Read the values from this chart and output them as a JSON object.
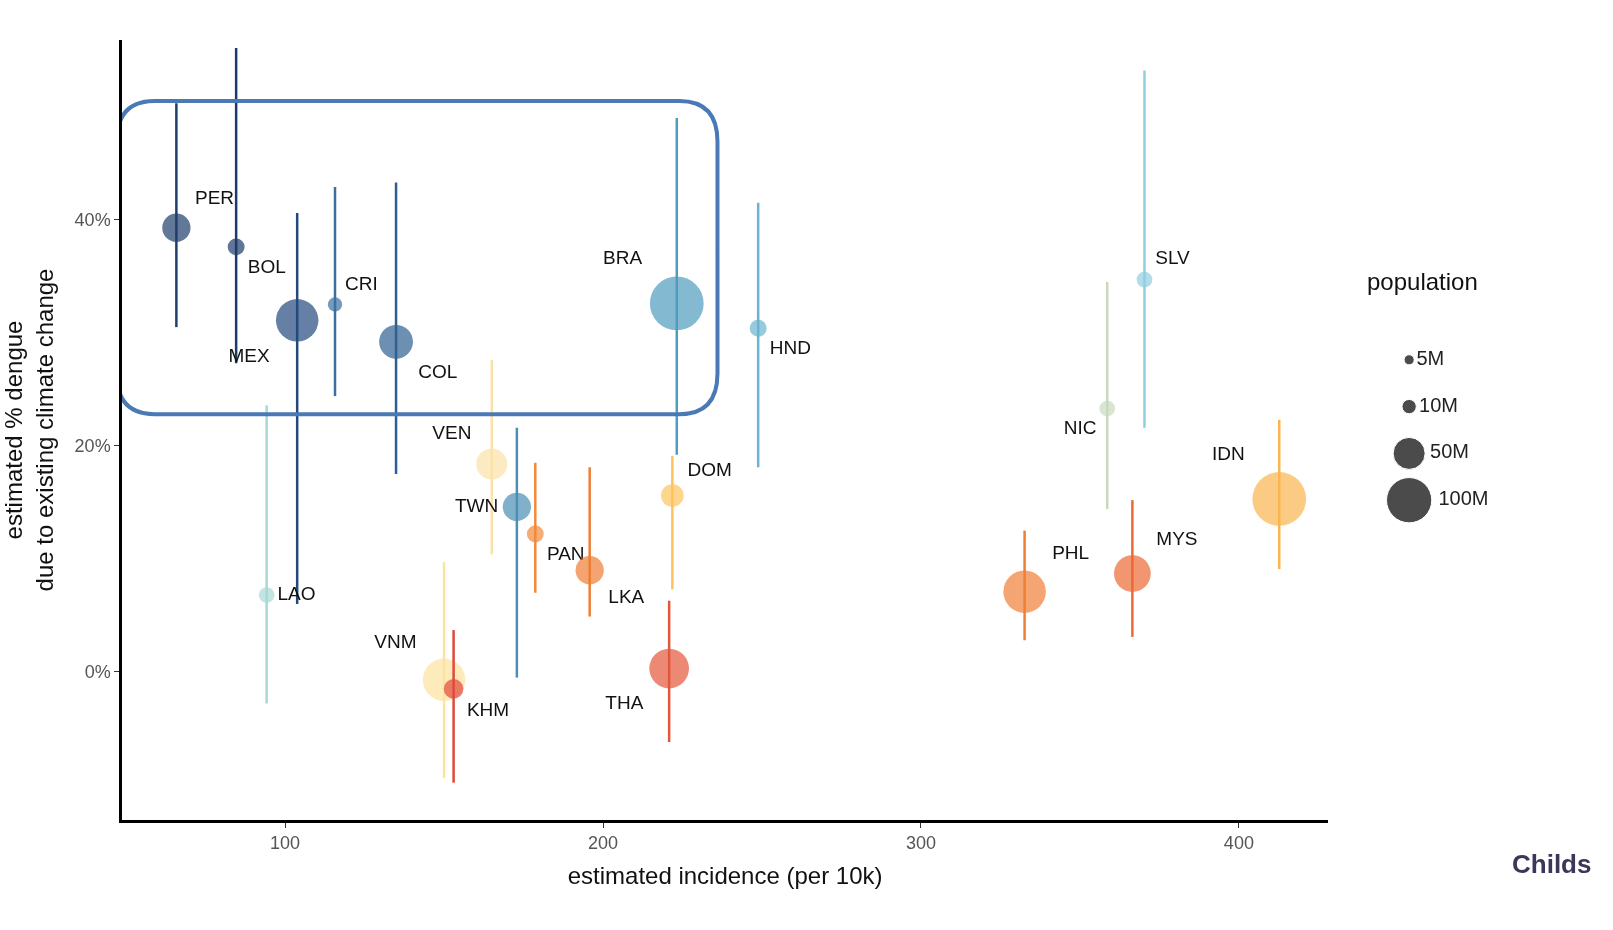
{
  "chart_data": {
    "type": "bubble",
    "xlabel": "estimated incidence (per 10k)",
    "ylabel": "estimated % dengue\ndue to existing climate change",
    "legend_title": "population",
    "legend": "right",
    "xlim": [
      48.7,
      428.1
    ],
    "xticks": [
      100,
      200,
      300,
      400
    ],
    "ylim": [
      -13.1,
      55.9
    ],
    "yticks": [
      {
        "value": 0,
        "label": "0%"
      },
      {
        "value": 20,
        "label": "20%"
      },
      {
        "value": 40,
        "label": "40%"
      }
    ],
    "size_legend": [
      {
        "value": 5,
        "label": "5M"
      },
      {
        "value": 10,
        "label": "10M"
      },
      {
        "value": 50,
        "label": "50M"
      },
      {
        "value": 100,
        "label": "100M"
      }
    ],
    "annotations": [
      "Childs"
    ],
    "series": [
      {
        "name": "PER",
        "color": "#1f3f6e",
        "x": [
          65.8
        ],
        "values": [
          39.3
        ],
        "sizes": [
          39
        ],
        "errors": [
          [
            30.5,
            50.3
          ]
        ]
      },
      {
        "name": "BOL",
        "color": "#1d3a6b",
        "x": [
          84.6
        ],
        "values": [
          37.6
        ],
        "sizes": [
          14
        ],
        "errors": [
          [
            27.3,
            55.2
          ]
        ]
      },
      {
        "name": "MEX",
        "color": "#234a7e",
        "x": [
          103.8
        ],
        "values": [
          31.1
        ],
        "sizes": [
          88
        ],
        "errors": [
          [
            6.0,
            40.6
          ]
        ]
      },
      {
        "name": "CRI",
        "color": "#3b6fa0",
        "x": [
          115.7
        ],
        "values": [
          32.5
        ],
        "sizes": [
          10
        ],
        "errors": [
          [
            24.4,
            42.9
          ]
        ]
      },
      {
        "name": "COL",
        "color": "#2f5f90",
        "x": [
          134.9
        ],
        "values": [
          29.2
        ],
        "sizes": [
          56
        ],
        "errors": [
          [
            17.5,
            43.3
          ]
        ]
      },
      {
        "name": "BRA",
        "color": "#4f9dbe",
        "x": [
          223.2
        ],
        "values": [
          32.6
        ],
        "sizes": [
          141
        ],
        "errors": [
          [
            19.2,
            49.0
          ]
        ]
      },
      {
        "name": "HND",
        "color": "#6ab4d0",
        "x": [
          248.8
        ],
        "values": [
          30.4
        ],
        "sizes": [
          14
        ],
        "errors": [
          [
            18.1,
            41.5
          ]
        ]
      },
      {
        "name": "SLV",
        "color": "#8ecfe0",
        "x": [
          370.3
        ],
        "values": [
          34.7
        ],
        "sizes": [
          12
        ],
        "errors": [
          [
            21.6,
            53.2
          ]
        ]
      },
      {
        "name": "NIC",
        "color": "#c9d9c0",
        "x": [
          358.6
        ],
        "values": [
          23.3
        ],
        "sizes": [
          12
        ],
        "errors": [
          [
            14.4,
            34.5
          ]
        ]
      },
      {
        "name": "LAO",
        "color": "#a8d8d6",
        "x": [
          94.2
        ],
        "values": [
          6.8
        ],
        "sizes": [
          12
        ],
        "errors": [
          [
            -2.8,
            23.6
          ]
        ]
      },
      {
        "name": "VEN",
        "color": "#fbe2a8",
        "x": [
          165.0
        ],
        "values": [
          18.4
        ],
        "sizes": [
          47
        ],
        "errors": [
          [
            10.4,
            27.6
          ]
        ]
      },
      {
        "name": "TWN",
        "color": "#4a8fb4",
        "x": [
          172.9
        ],
        "values": [
          14.6
        ],
        "sizes": [
          39
        ],
        "errors": [
          [
            -0.5,
            21.6
          ]
        ]
      },
      {
        "name": "PAN",
        "color": "#f08a3c",
        "x": [
          178.7
        ],
        "values": [
          12.2
        ],
        "sizes": [
          14
        ],
        "errors": [
          [
            7.0,
            18.5
          ]
        ]
      },
      {
        "name": "LKA",
        "color": "#ee7d35",
        "x": [
          195.8
        ],
        "values": [
          9.0
        ],
        "sizes": [
          39
        ],
        "errors": [
          [
            4.9,
            18.1
          ]
        ]
      },
      {
        "name": "DOM",
        "color": "#fcc35c",
        "x": [
          221.8
        ],
        "values": [
          15.6
        ],
        "sizes": [
          25
        ],
        "errors": [
          [
            7.3,
            19.1
          ]
        ]
      },
      {
        "name": "VNM",
        "color": "#fde3a0",
        "x": [
          150.0
        ],
        "values": [
          -0.7
        ],
        "sizes": [
          88
        ],
        "errors": [
          [
            -9.4,
            9.7
          ]
        ]
      },
      {
        "name": "KHM",
        "color": "#e04a3a",
        "x": [
          153.0
        ],
        "values": [
          -1.5
        ],
        "sizes": [
          19
        ],
        "errors": [
          [
            -9.8,
            3.7
          ]
        ]
      },
      {
        "name": "THA",
        "color": "#e2573a",
        "x": [
          220.8
        ],
        "values": [
          0.3
        ],
        "sizes": [
          77
        ],
        "errors": [
          [
            -6.2,
            6.3
          ]
        ]
      },
      {
        "name": "PHL",
        "color": "#ef7f34",
        "x": [
          332.6
        ],
        "values": [
          7.1
        ],
        "sizes": [
          88
        ],
        "errors": [
          [
            2.8,
            12.5
          ]
        ]
      },
      {
        "name": "MYS",
        "color": "#eb6a33",
        "x": [
          366.5
        ],
        "values": [
          8.7
        ],
        "sizes": [
          66
        ],
        "errors": [
          [
            3.1,
            15.2
          ]
        ]
      },
      {
        "name": "IDN",
        "color": "#fbb54e",
        "x": [
          412.7
        ],
        "values": [
          15.3
        ],
        "sizes": [
          141
        ],
        "errors": [
          [
            9.1,
            22.3
          ]
        ]
      }
    ]
  }
}
